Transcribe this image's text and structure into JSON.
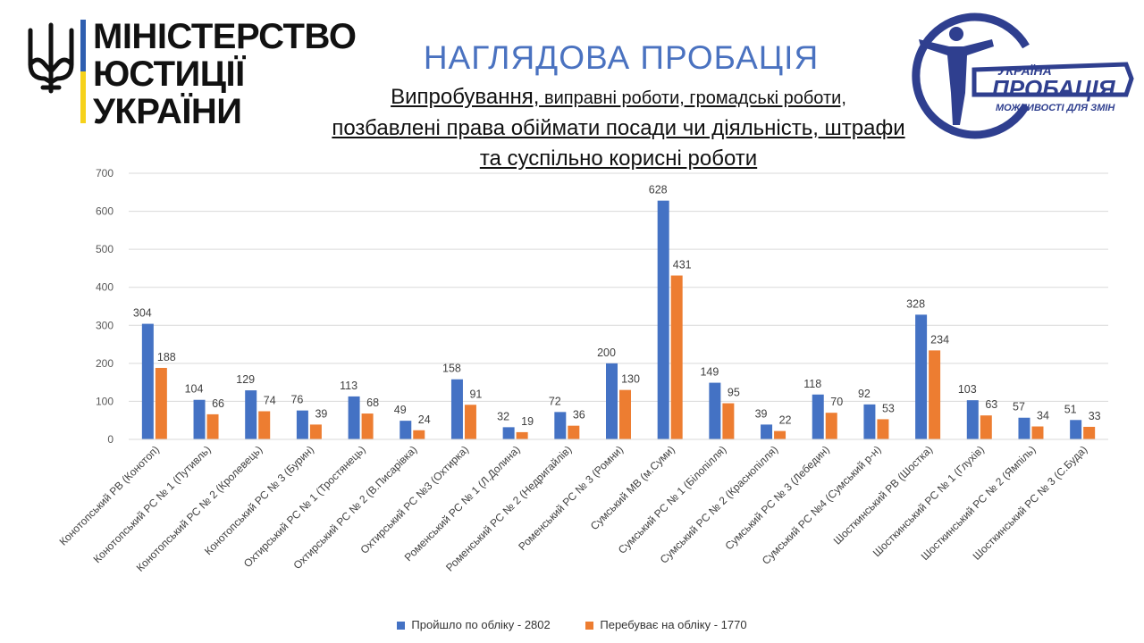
{
  "header": {
    "ministry_line1": "МІНІСТЕРСТВО",
    "ministry_line2": "ЮСТИЦІЇ УКРАЇНИ",
    "title": "НАГЛЯДОВА ПРОБАЦІЯ",
    "subtitle_line1_a": "Випробування,",
    "subtitle_line1_b": " виправні роботи, громадські роботи,",
    "subtitle_line2": "позбавлені права обіймати посади чи діяльність, штрафи",
    "subtitle_line3": "та суспільно корисні роботи"
  },
  "probation_logo": {
    "word1": "УКРАЇНА",
    "word2": "ПРОБАЦІЯ",
    "tagline": "МОЖЛИВОСТІ ДЛЯ ЗМІН"
  },
  "colors": {
    "series1": "#4472c4",
    "series2": "#ed7d31",
    "brand_navy": "#2f3f8f"
  },
  "chart_data": {
    "type": "bar",
    "ylim": [
      0,
      700
    ],
    "yticks": [
      0,
      100,
      200,
      300,
      400,
      500,
      600,
      700
    ],
    "grid": true,
    "legend_position": "bottom",
    "categories": [
      "Конотопський РВ (Конотоп)",
      "Конотопський РС № 1 (Путивль)",
      "Конотопський РС № 2 (Кролевець)",
      "Конотопський РС № 3 (Бурин)",
      "Охтирський РС № 1 (Тростянець)",
      "Охтирський РС № 2 (В.Писарівка)",
      "Охтирський РС №3 (Охтирка)",
      "Роменський РС № 1 (Л.Долина)",
      "Роменський РС № 2 (Недригайлів)",
      "Роменський РС № 3 (Ромни)",
      "Сумський МВ (м.Суми)",
      "Сумський РС № 1 (Білопілля)",
      "Сумський РС № 2 (Краснопілля)",
      "Сумський РС № 3 (Лебедин)",
      "Сумський РС №4 (Сумський р-н)",
      "Шосткинський РВ (Шостка)",
      "Шосткинський РС № 1 (Глухів)",
      "Шосткинський РС № 2 (Ямпіль)",
      "Шосткинський РС № 3 (С.Буда)"
    ],
    "series": [
      {
        "name": "Пройшло по обліку - 2802",
        "color": "#4472c4",
        "values": [
          304,
          104,
          129,
          76,
          113,
          49,
          158,
          32,
          72,
          200,
          628,
          149,
          39,
          118,
          92,
          328,
          103,
          57,
          51
        ]
      },
      {
        "name": "Перебуває на обліку - 1770",
        "color": "#ed7d31",
        "values": [
          188,
          66,
          74,
          39,
          68,
          24,
          91,
          19,
          36,
          130,
          431,
          95,
          22,
          70,
          53,
          234,
          63,
          34,
          33
        ]
      }
    ]
  }
}
